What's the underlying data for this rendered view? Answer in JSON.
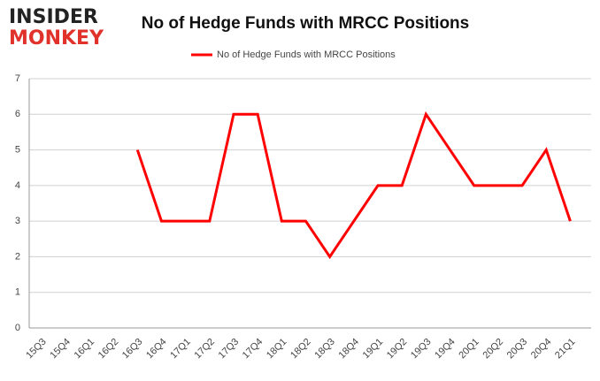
{
  "logo": {
    "line1": "INSIDER",
    "line2": "MONKEY"
  },
  "chart_data": {
    "type": "line",
    "title": "No of Hedge Funds with MRCC Positions",
    "categories": [
      "15Q3",
      "15Q4",
      "16Q1",
      "16Q2",
      "16Q3",
      "16Q4",
      "17Q1",
      "17Q2",
      "17Q3",
      "17Q4",
      "18Q1",
      "18Q2",
      "18Q3",
      "18Q4",
      "19Q1",
      "19Q2",
      "19Q3",
      "19Q4",
      "20Q1",
      "20Q2",
      "20Q3",
      "20Q4",
      "21Q1"
    ],
    "series": [
      {
        "name": "No of Hedge Funds with MRCC Positions",
        "color": "#ff0000",
        "values": [
          null,
          null,
          null,
          null,
          5,
          3,
          3,
          3,
          6,
          6,
          3,
          3,
          2,
          3,
          4,
          4,
          6,
          5,
          4,
          4,
          4,
          5,
          3
        ]
      }
    ],
    "ylim": [
      0,
      7
    ],
    "yticks": [
      0,
      1,
      2,
      3,
      4,
      5,
      6,
      7
    ],
    "grid": true,
    "legend": "top"
  }
}
